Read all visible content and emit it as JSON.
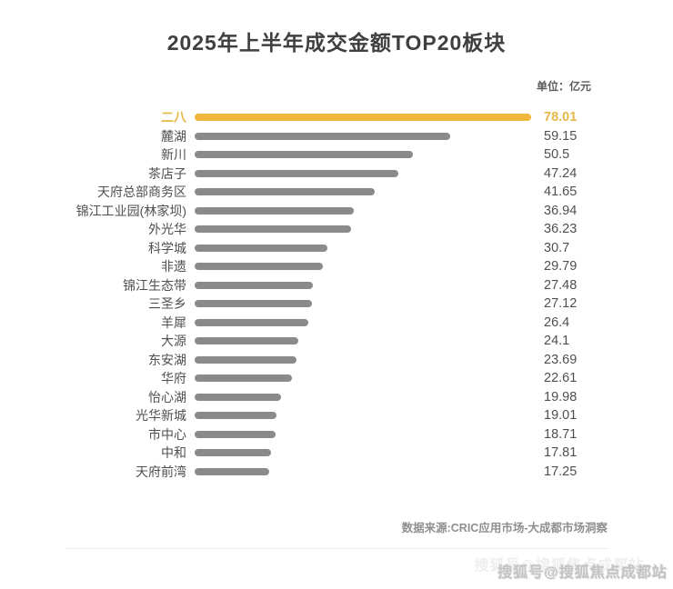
{
  "title": "2025年上半年成交金额TOP20板块",
  "unit_label": "单位：亿元",
  "source": "数据来源:CRIC应用市场-大成都市场洞察",
  "watermark": "搜狐号@搜狐焦点成都站",
  "colors": {
    "highlight_bar": "#f3b63c",
    "highlight_text": "#e8b74a",
    "bar": "#8a8a8a",
    "label_text": "#4f4f4f"
  },
  "chart_data": {
    "type": "bar",
    "orientation": "horizontal",
    "title": "2025年上半年成交金额TOP20板块",
    "unit": "亿元",
    "xlim": [
      0,
      78.01
    ],
    "grid": false,
    "legend": "none",
    "highlight_index": 0,
    "categories": [
      "二八",
      "麓湖",
      "新川",
      "茶店子",
      "天府总部商务区",
      "锦江工业园(林家坝)",
      "外光华",
      "科学城",
      "非遗",
      "锦江生态带",
      "三圣乡",
      "羊犀",
      "大源",
      "东安湖",
      "华府",
      "怡心湖",
      "光华新城",
      "市中心",
      "中和",
      "天府前湾"
    ],
    "values": [
      78.01,
      59.15,
      50.5,
      47.24,
      41.65,
      36.94,
      36.23,
      30.7,
      29.79,
      27.48,
      27.12,
      26.4,
      24.1,
      23.69,
      22.61,
      19.98,
      19.01,
      18.71,
      17.81,
      17.25
    ]
  }
}
